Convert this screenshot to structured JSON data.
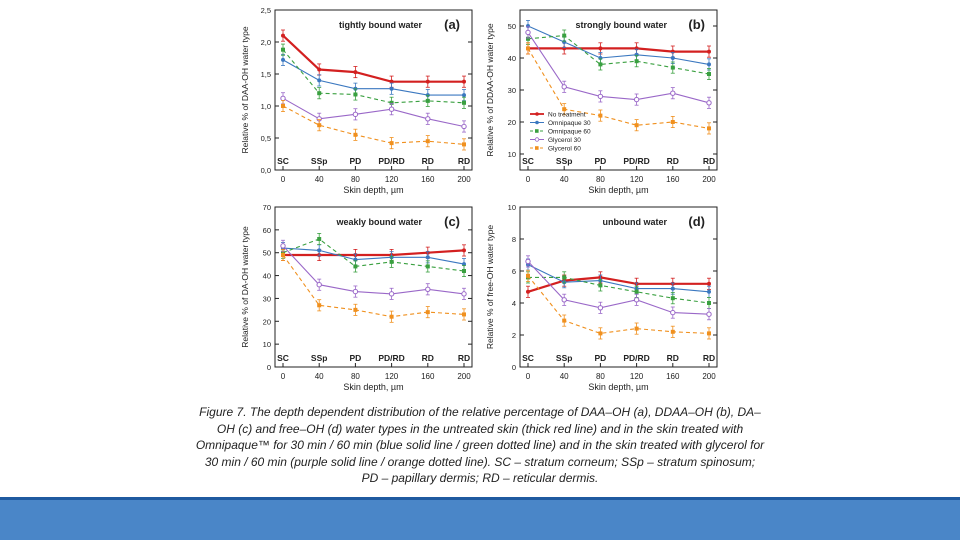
{
  "colors": {
    "background": "#ffffff",
    "footer_bar": "#4a86c8",
    "footer_line": "#1f5aa0",
    "no_treatment": "#d32020",
    "omnipaque_30": "#3b78c0",
    "omnipaque_60": "#3aa040",
    "glycerol_30": "#9a68c8",
    "glycerol_60": "#f0901e"
  },
  "caption": "Figure 7. The depth dependent distribution of the relative percentage of DAA–OH (a), DDAA–OH (b), DA–OH (c) and free–OH (d) water types in the untreated skin (thick red line) and in the skin treated with Omnipaque™ for 30 min / 60 min (blue solid line / green dotted line) and in the skin treated with glycerol for 30 min / 60 min (purple solid line / orange dotted line). SC – stratum corneum; SSp – stratum spinosum; PD – papillary dermis; RD – reticular dermis.",
  "chart_data": [
    {
      "type": "line",
      "panel": "(a)",
      "title": "tightly bound water",
      "xlabel": "Skin depth, µm",
      "ylabel": "Relative % of DAA-OH water type",
      "x": [
        0,
        40,
        80,
        120,
        160,
        200
      ],
      "xticks": [
        "0",
        "40",
        "80",
        "120",
        "160",
        "200"
      ],
      "yticks": [
        "0,0",
        "0,5",
        "1,0",
        "1,5",
        "2,0",
        "2,5"
      ],
      "ylim": [
        0,
        2.5
      ],
      "layers": [
        "SC",
        "SSp",
        "PD",
        "PD/RD",
        "RD",
        "RD"
      ],
      "series": [
        {
          "name": "No treatment",
          "values": [
            2.1,
            1.57,
            1.53,
            1.38,
            1.38,
            1.38
          ]
        },
        {
          "name": "Omnipaque 30",
          "values": [
            1.72,
            1.4,
            1.27,
            1.27,
            1.17,
            1.17
          ]
        },
        {
          "name": "Omnipaque 60",
          "values": [
            1.88,
            1.2,
            1.18,
            1.05,
            1.08,
            1.05
          ]
        },
        {
          "name": "Glycerol 30",
          "values": [
            1.12,
            0.8,
            0.87,
            0.95,
            0.8,
            0.68
          ]
        },
        {
          "name": "Glycerol 60",
          "values": [
            1.0,
            0.7,
            0.55,
            0.42,
            0.45,
            0.4
          ]
        }
      ]
    },
    {
      "type": "line",
      "panel": "(b)",
      "title": "strongly bound water",
      "xlabel": "Skin depth, µm",
      "ylabel": "Relative % of DDAA-OH water type",
      "x": [
        0,
        40,
        80,
        120,
        160,
        200
      ],
      "xticks": [
        "0",
        "40",
        "80",
        "120",
        "160",
        "200"
      ],
      "yticks": [
        "10",
        "20",
        "30",
        "40",
        "50"
      ],
      "ylim": [
        5,
        55
      ],
      "layers": [
        "SC",
        "SSp",
        "PD",
        "PD/RD",
        "RD",
        "RD"
      ],
      "legend": {
        "position": "left-middle",
        "entries": [
          "No treatment",
          "Omnipaque 30",
          "Omnipaque 60",
          "Glycerol 30",
          "Glycerol 60"
        ]
      },
      "series": [
        {
          "name": "No treatment",
          "values": [
            43,
            43,
            43,
            43,
            42,
            42
          ]
        },
        {
          "name": "Omnipaque 30",
          "values": [
            50,
            45,
            40,
            41,
            40,
            38
          ]
        },
        {
          "name": "Omnipaque 60",
          "values": [
            46,
            47,
            38,
            39,
            37,
            35
          ]
        },
        {
          "name": "Glycerol 30",
          "values": [
            48,
            31,
            28,
            27,
            29,
            26
          ]
        },
        {
          "name": "Glycerol 60",
          "values": [
            43,
            24,
            22,
            19,
            20,
            18
          ]
        }
      ]
    },
    {
      "type": "line",
      "panel": "(c)",
      "title": "weakly bound water",
      "xlabel": "Skin depth, µm",
      "ylabel": "Relative % of DA-OH water type",
      "x": [
        0,
        40,
        80,
        120,
        160,
        200
      ],
      "xticks": [
        "0",
        "40",
        "80",
        "120",
        "160",
        "200"
      ],
      "yticks": [
        "0",
        "10",
        "20",
        "30",
        "40",
        "50",
        "60",
        "70"
      ],
      "ylim": [
        0,
        70
      ],
      "layers": [
        "SC",
        "SSp",
        "PD",
        "PD/RD",
        "RD",
        "RD"
      ],
      "series": [
        {
          "name": "No treatment",
          "values": [
            49,
            49,
            49,
            49,
            50,
            51
          ]
        },
        {
          "name": "Omnipaque 30",
          "values": [
            52,
            51,
            47,
            48,
            48,
            45
          ]
        },
        {
          "name": "Omnipaque 60",
          "values": [
            50,
            56,
            44,
            46,
            44,
            42
          ]
        },
        {
          "name": "Glycerol 30",
          "values": [
            53,
            36,
            33,
            32,
            34,
            32
          ]
        },
        {
          "name": "Glycerol 60",
          "values": [
            49,
            27,
            25,
            22,
            24,
            23
          ]
        }
      ]
    },
    {
      "type": "line",
      "panel": "(d)",
      "title": "unbound water",
      "xlabel": "Skin depth, µm",
      "ylabel": "Relative % of free-OH water type",
      "x": [
        0,
        40,
        80,
        120,
        160,
        200
      ],
      "xticks": [
        "0",
        "40",
        "80",
        "120",
        "160",
        "200"
      ],
      "yticks": [
        "0",
        "2",
        "4",
        "6",
        "8",
        "10"
      ],
      "ylim": [
        0,
        10
      ],
      "layers": [
        "SC",
        "SSp",
        "PD",
        "PD/RD",
        "RD",
        "RD"
      ],
      "series": [
        {
          "name": "No treatment",
          "values": [
            4.7,
            5.4,
            5.6,
            5.2,
            5.2,
            5.2
          ]
        },
        {
          "name": "Omnipaque 30",
          "values": [
            6.4,
            5.3,
            5.4,
            4.9,
            4.9,
            4.7
          ]
        },
        {
          "name": "Omnipaque 60",
          "values": [
            5.6,
            5.6,
            5.1,
            4.7,
            4.3,
            4.0
          ]
        },
        {
          "name": "Glycerol 30",
          "values": [
            6.6,
            4.2,
            3.7,
            4.2,
            3.4,
            3.3
          ]
        },
        {
          "name": "Glycerol 60",
          "values": [
            5.7,
            2.9,
            2.1,
            2.4,
            2.2,
            2.1
          ]
        }
      ]
    }
  ]
}
